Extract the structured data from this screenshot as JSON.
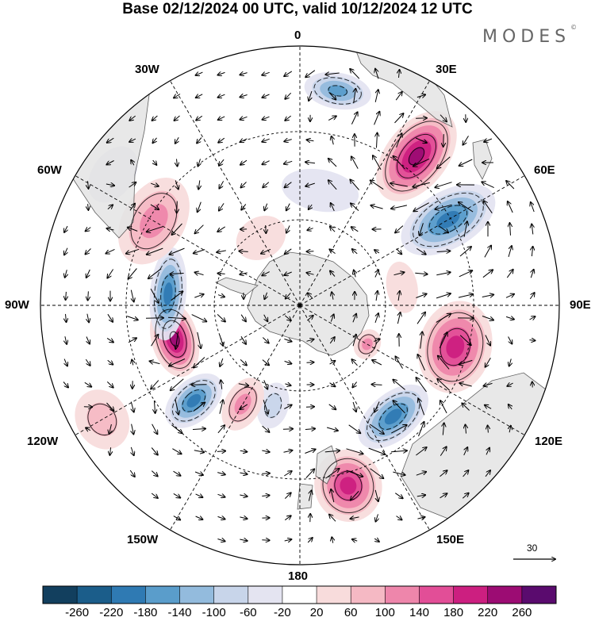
{
  "title": "Base 02/12/2024 00 UTC, valid 10/12/2024 12 UTC",
  "brand": {
    "text": "MODES",
    "mark": "©"
  },
  "meridian_labels": {
    "top": "0",
    "bottom": "180",
    "left": "90W",
    "right": "90E",
    "w30": "30W",
    "w60": "60W",
    "w120": "120W",
    "w150": "150W",
    "e30": "30E",
    "e60": "60E",
    "e120": "120E",
    "e150": "150E"
  },
  "reference_vector": {
    "label": "30"
  },
  "map": {
    "projection": "south-polar-stereographic",
    "field": "height anomaly",
    "land_color": "#e4e4e4",
    "coast_color": "#444444",
    "wind_vectors": "arrows"
  },
  "colorbar": {
    "colors": [
      "#123f5e",
      "#1b5d8a",
      "#2f7ab3",
      "#5a9dcb",
      "#93bbdd",
      "#c8d5ea",
      "#e4e4f1",
      "#ffffff",
      "#f8dcdc",
      "#f5b9c4",
      "#ee86ab",
      "#e24e97",
      "#cc1f80",
      "#9c0c73",
      "#5a0b6e"
    ],
    "labels": [
      "-260",
      "-220",
      "-180",
      "-140",
      "-100",
      "-60",
      "-20",
      "20",
      "60",
      "100",
      "140",
      "180",
      "220",
      "260"
    ]
  },
  "anomalies": [
    {
      "lon": 10,
      "r": 0.84,
      "sx": 0.13,
      "sy": 0.07,
      "v": -150
    },
    {
      "lon": 38,
      "r": 0.73,
      "sx": 0.12,
      "sy": 0.2,
      "v": 240
    },
    {
      "lon": 60,
      "r": 0.66,
      "sx": 0.11,
      "sy": 0.2,
      "v": -220
    },
    {
      "lon": 105,
      "r": 0.62,
      "sx": 0.18,
      "sy": 0.14,
      "v": 220
    },
    {
      "lon": 140,
      "r": 0.56,
      "sx": 0.16,
      "sy": 0.09,
      "v": -200
    },
    {
      "lon": 165,
      "r": 0.72,
      "sx": 0.13,
      "sy": 0.14,
      "v": 200
    },
    {
      "lon": 195,
      "r": 0.4,
      "sx": 0.06,
      "sy": 0.09,
      "v": -90
    },
    {
      "lon": 210,
      "r": 0.44,
      "sx": 0.07,
      "sy": 0.11,
      "v": 120
    },
    {
      "lon": 228,
      "r": 0.55,
      "sx": 0.08,
      "sy": 0.13,
      "v": -190
    },
    {
      "lon": 255,
      "r": 0.5,
      "sx": 0.15,
      "sy": 0.09,
      "v": 260
    },
    {
      "lon": 275,
      "r": 0.51,
      "sx": 0.18,
      "sy": 0.07,
      "v": -190
    },
    {
      "lon": 300,
      "r": 0.65,
      "sx": 0.18,
      "sy": 0.12,
      "v": 130
    },
    {
      "lon": 240,
      "r": 0.88,
      "sx": 0.12,
      "sy": 0.1,
      "v": 70
    },
    {
      "lon": 80,
      "r": 0.4,
      "sx": 0.1,
      "sy": 0.06,
      "v": 60
    },
    {
      "lon": 120,
      "r": 0.3,
      "sx": 0.06,
      "sy": 0.05,
      "v": 110
    },
    {
      "lon": 10,
      "r": 0.45,
      "sx": 0.15,
      "sy": 0.08,
      "v": -60
    },
    {
      "lon": 305,
      "r": 0.88,
      "sx": 0.12,
      "sy": 0.08,
      "v": -60
    },
    {
      "lon": 330,
      "r": 0.3,
      "sx": 0.1,
      "sy": 0.08,
      "v": 60
    }
  ]
}
